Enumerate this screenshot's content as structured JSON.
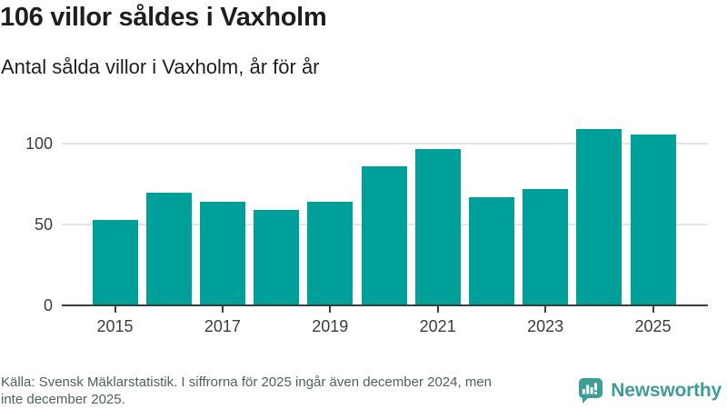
{
  "header": {
    "title": "106 villor såldes i Vaxholm",
    "subtitle": "Antal sålda villor i Vaxholm, år för år"
  },
  "chart_data": {
    "type": "bar",
    "title": "106 villor såldes i Vaxholm",
    "subtitle": "Antal sålda villor i Vaxholm, år för år",
    "categories": [
      "2015",
      "2016",
      "2017",
      "2018",
      "2019",
      "2020",
      "2021",
      "2022",
      "2023",
      "2024",
      "2025"
    ],
    "values": [
      53,
      70,
      64,
      59,
      64,
      86,
      97,
      67,
      72,
      109,
      106
    ],
    "xlabel": "",
    "ylabel": "",
    "ylim": [
      0,
      112
    ],
    "yticks": [
      0,
      50,
      100
    ],
    "xtick_labels": [
      "2015",
      "2017",
      "2019",
      "2021",
      "2023",
      "2025"
    ],
    "grid": true,
    "legend": false,
    "bar_color": "#00a09a"
  },
  "footer": {
    "source_lines": [
      "Källa: Svensk Mäklarstatistik. I siffrorna för 2025 ingår även december 2024, men",
      "inte december 2025."
    ],
    "brand": "Newsworthy"
  },
  "colors": {
    "bar": "#00a09a",
    "logo": "#3d9e97",
    "title_text": "#1c201d",
    "axis_text": "#3c3c3c",
    "footer_text": "#4f6061",
    "gridline": "#e4e4e4",
    "axis_line": "#3d3d3d"
  }
}
